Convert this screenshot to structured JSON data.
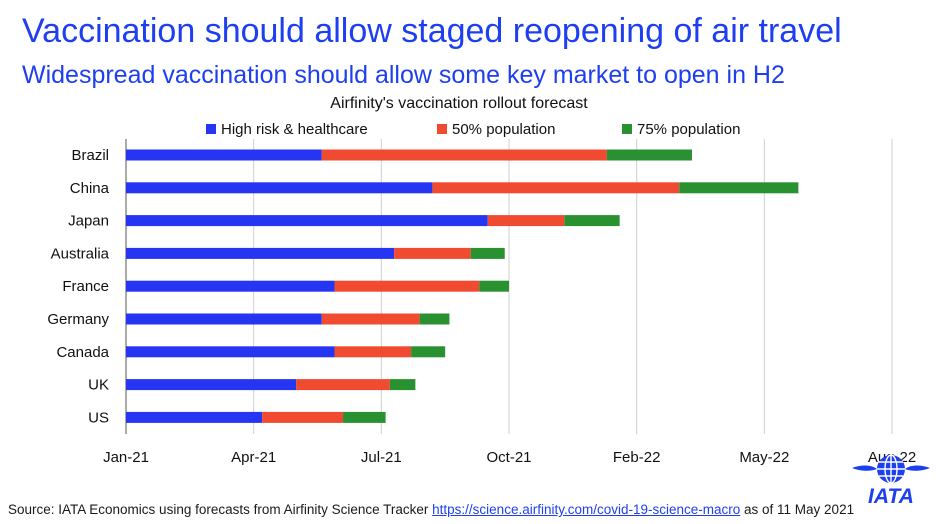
{
  "header": {
    "title": "Vaccination should allow staged reopening of air travel",
    "subtitle": "Widespread vaccination should allow some key market to open in H2"
  },
  "chart_data": {
    "type": "bar",
    "orientation": "horizontal",
    "stacked": true,
    "title": "Airfinity's vaccination rollout forecast",
    "categories": [
      "Brazil",
      "China",
      "Japan",
      "Australia",
      "France",
      "Germany",
      "Canada",
      "UK",
      "US"
    ],
    "x_ticks": [
      "Jan-21",
      "Apr-21",
      "Jul-21",
      "Oct-21",
      "Feb-22",
      "May-22",
      "Aug-22"
    ],
    "x_unit": "months from Jan-21",
    "xlim": [
      0,
      18
    ],
    "series": [
      {
        "name": "High risk & healthcare",
        "color": "#2635f2",
        "values": [
          4.6,
          7.2,
          8.5,
          6.3,
          4.9,
          4.6,
          4.9,
          4.0,
          3.2
        ]
      },
      {
        "name": "50% population",
        "color": "#f04a30",
        "values": [
          6.7,
          5.8,
          1.8,
          1.8,
          3.4,
          2.3,
          1.8,
          2.2,
          1.9
        ]
      },
      {
        "name": "75% population",
        "color": "#2a9131",
        "values": [
          2.0,
          2.8,
          1.3,
          0.8,
          0.7,
          0.7,
          0.8,
          0.6,
          1.0
        ]
      }
    ],
    "legend_position": "top",
    "grid": "vertical"
  },
  "footer": {
    "source_prefix": "Source: IATA Economics using forecasts from Airfinity Science Tracker ",
    "source_link": "https://science.airfinity.com/covid-19-science-macro",
    "source_suffix": " as of 11 May 2021"
  },
  "logo": {
    "text": "IATA",
    "icon": "iata-globe-icon",
    "color": "#1e3ff0"
  }
}
